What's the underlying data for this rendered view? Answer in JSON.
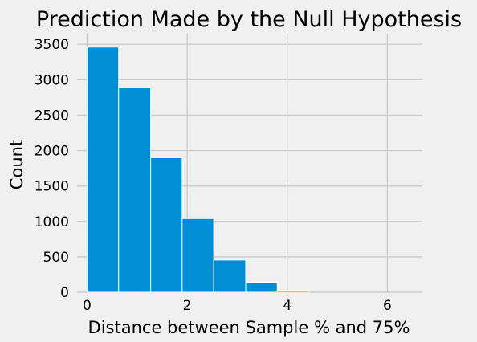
{
  "chart_data": {
    "type": "bar",
    "subtype": "histogram",
    "title": "Prediction Made by the Null Hypothesis",
    "xlabel": "Distance between Sample % and 75%",
    "ylabel": "Count",
    "bins": [
      {
        "x0": 0.0,
        "x1": 0.63,
        "value": 3460
      },
      {
        "x0": 0.63,
        "x1": 1.27,
        "value": 2890
      },
      {
        "x0": 1.27,
        "x1": 1.9,
        "value": 1900
      },
      {
        "x0": 1.9,
        "x1": 2.53,
        "value": 1040
      },
      {
        "x0": 2.53,
        "x1": 3.17,
        "value": 455
      },
      {
        "x0": 3.17,
        "x1": 3.8,
        "value": 140
      },
      {
        "x0": 3.8,
        "x1": 4.43,
        "value": 25
      },
      {
        "x0": 4.43,
        "x1": 5.07,
        "value": 0
      },
      {
        "x0": 5.07,
        "x1": 5.7,
        "value": 0
      },
      {
        "x0": 5.7,
        "x1": 6.33,
        "value": 0
      }
    ],
    "xlim": [
      -0.2,
      6.7
    ],
    "ylim": [
      0,
      3650
    ],
    "xticks": [
      0,
      2,
      4,
      6
    ],
    "xtick_labels": [
      "0",
      "2",
      "4",
      "6"
    ],
    "yticks": [
      0,
      500,
      1000,
      1500,
      2000,
      2500,
      3000,
      3500
    ],
    "ytick_labels": [
      "0",
      "500",
      "1000",
      "1500",
      "2000",
      "2500",
      "3000",
      "3500"
    ],
    "grid": true,
    "colors": {
      "bar": "#008fd5",
      "bar_edge": "#ffffff",
      "grid": "#cbcbcb",
      "background": "#f0f0f0"
    }
  }
}
